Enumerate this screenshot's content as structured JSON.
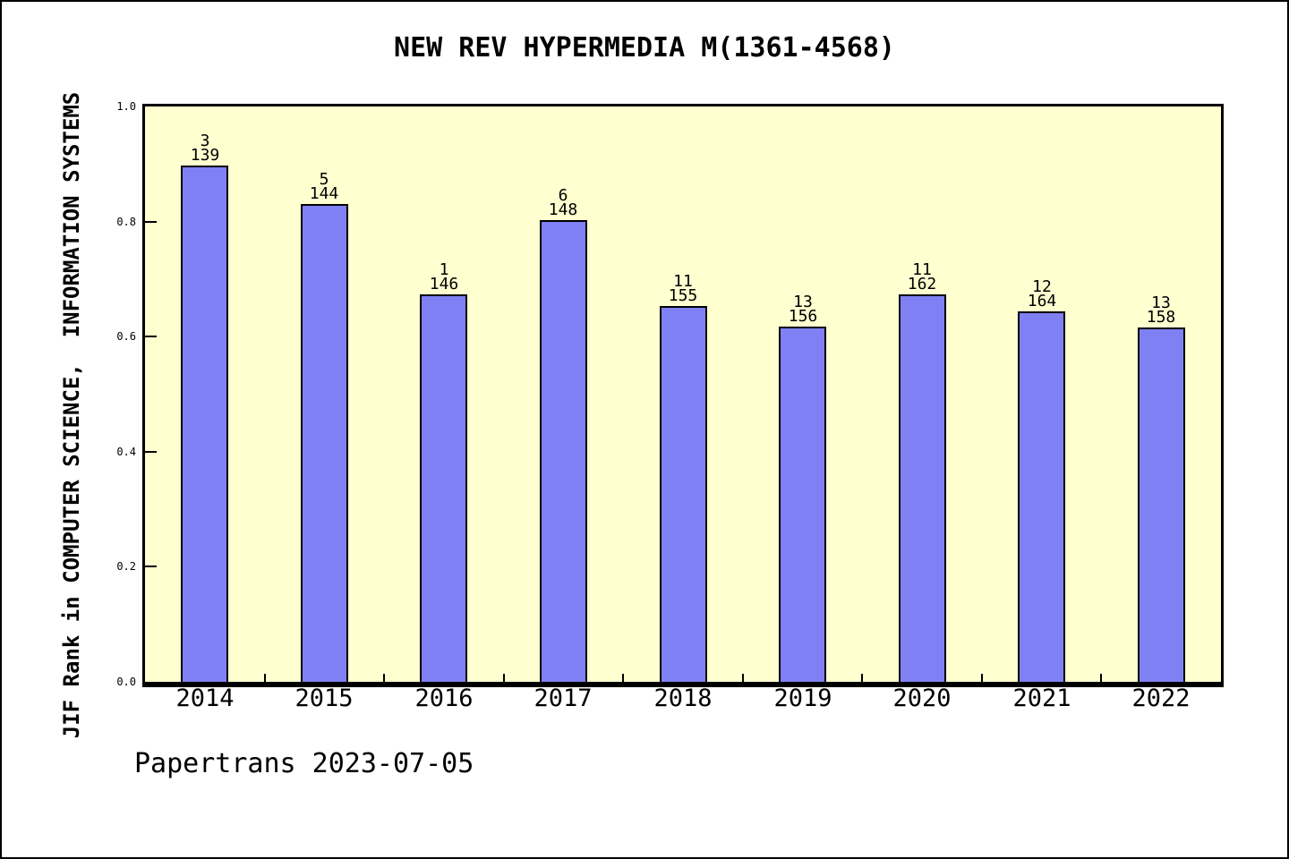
{
  "title": "NEW REV HYPERMEDIA M(1361-4568)",
  "y_axis_label": "JIF Rank in COMPUTER SCIENCE,  INFORMATION SYSTEMS",
  "footer": "Papertrans 2023-07-05",
  "colors": {
    "page_bg": "#FFFFFF",
    "plot_bg": "#FFFFD0",
    "bar_fill": "#8080F5",
    "bar_border": "#000000",
    "axis": "#000000",
    "text": "#000000"
  },
  "chart_data": {
    "type": "bar",
    "title": "NEW REV HYPERMEDIA M(1361-4568)",
    "xlabel": "",
    "ylabel": "JIF Rank in COMPUTER SCIENCE,  INFORMATION SYSTEMS",
    "categories": [
      "2014",
      "2015",
      "2016",
      "2017",
      "2018",
      "2019",
      "2020",
      "2021",
      "2022"
    ],
    "values": [
      0.897,
      0.83,
      0.674,
      0.803,
      0.653,
      0.617,
      0.673,
      0.644,
      0.616
    ],
    "bar_label_rank": [
      "3",
      "5",
      "1",
      "6",
      "11",
      "13",
      "11",
      "12",
      "13"
    ],
    "bar_label_total": [
      "139",
      "144",
      "146",
      "148",
      "155",
      "156",
      "162",
      "164",
      "158"
    ],
    "ylim": [
      0,
      1
    ],
    "yticks": [
      "0.0",
      "0.2",
      "0.4",
      "0.6",
      "0.8",
      "1.0"
    ],
    "grid": false,
    "legend": "none",
    "annotation": "Papertrans 2023-07-05"
  }
}
